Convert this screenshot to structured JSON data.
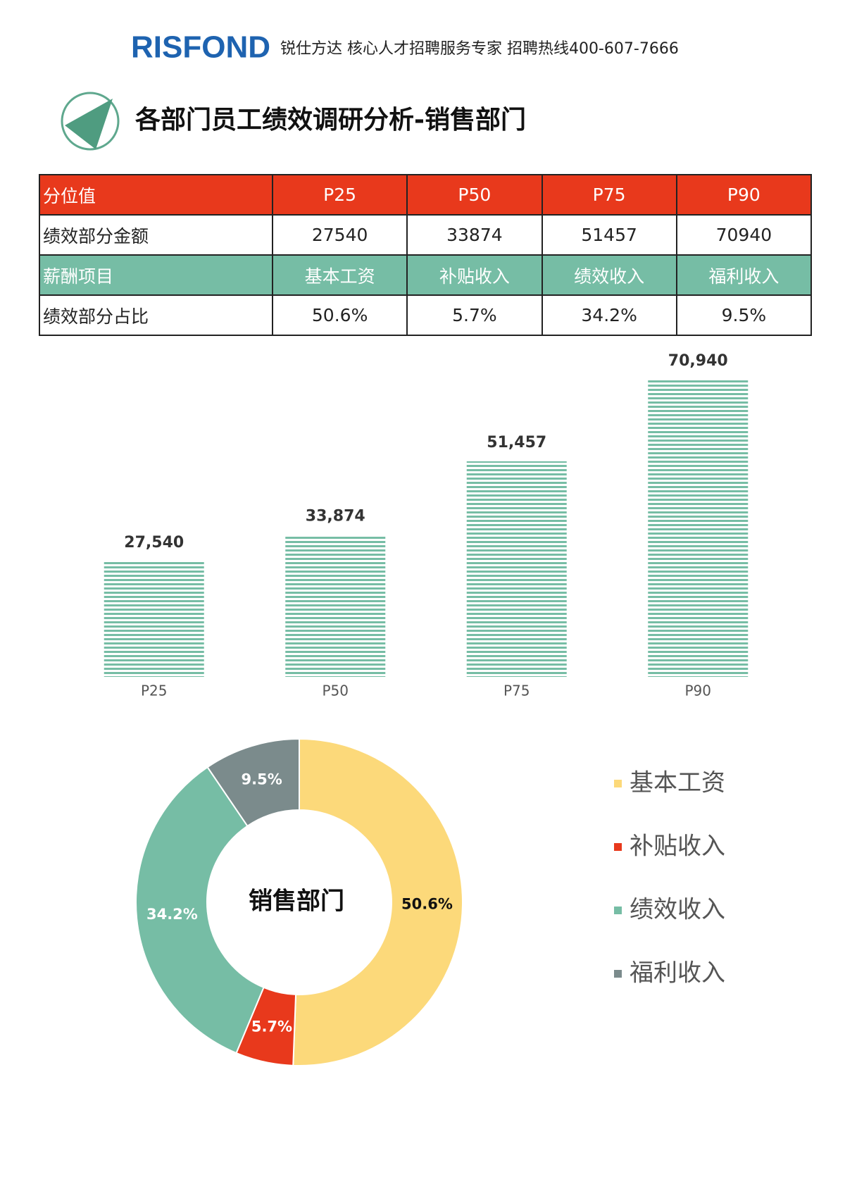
{
  "header": {
    "logo": "RISFOND",
    "tagline": "锐仕方达 核心人才招聘服务专家 招聘热线400-607-7666"
  },
  "title": "各部门员工绩效调研分析-销售部门",
  "table": {
    "rows": [
      [
        "分位值",
        "P25",
        "P50",
        "P75",
        "P90"
      ],
      [
        "绩效部分金额",
        "27540",
        "33874",
        "51457",
        "70940"
      ],
      [
        "薪酬项目",
        "基本工资",
        "补贴收入",
        "绩效收入",
        "福利收入"
      ],
      [
        "绩效部分占比",
        "50.6%",
        "5.7%",
        "34.2%",
        "9.5%"
      ]
    ]
  },
  "chart_data": [
    {
      "type": "bar",
      "categories": [
        "P25",
        "P50",
        "P75",
        "P90"
      ],
      "values": [
        27540,
        33874,
        51457,
        70940
      ],
      "value_labels": [
        "27,540",
        "33,874",
        "51,457",
        "70,940"
      ],
      "color": "#76bda5"
    },
    {
      "type": "pie",
      "center_label": "销售部门",
      "categories": [
        "基本工资",
        "补贴收入",
        "绩效收入",
        "福利收入"
      ],
      "values": [
        50.6,
        5.7,
        34.2,
        9.5
      ],
      "value_labels": [
        "50.6%",
        "5.7%",
        "34.2%",
        "9.5%"
      ],
      "colors": [
        "#fcd97a",
        "#e8391c",
        "#76bda5",
        "#7b8b8c"
      ]
    }
  ]
}
